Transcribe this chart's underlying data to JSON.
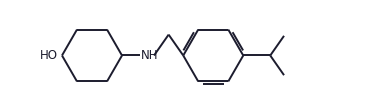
{
  "line_color": "#1c1c2e",
  "bg_color": "#ffffff",
  "line_width": 1.4,
  "figsize": [
    3.81,
    1.11
  ],
  "dpi": 100,
  "font_size": 8.5
}
